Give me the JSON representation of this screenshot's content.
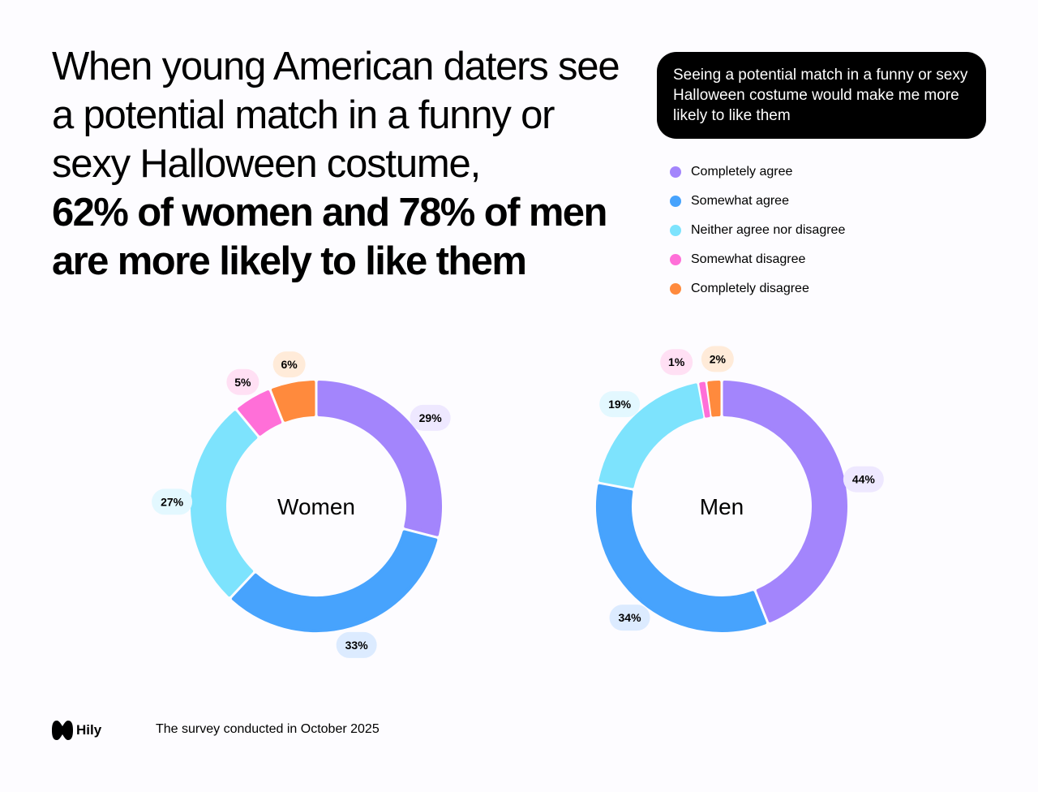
{
  "headline": {
    "regular": "When young American daters see a potential match in a funny or sexy Halloween costume,",
    "bold": "62% of women and 78% of men are more likely to like them"
  },
  "question": "Seeing a potential match in a funny or sexy Halloween costume would make me more likely to like them",
  "legend": [
    {
      "label": "Completely agree",
      "color": "#A385FC"
    },
    {
      "label": "Somewhat agree",
      "color": "#47A3FD"
    },
    {
      "label": "Neither agree nor disagree",
      "color": "#7DE3FD"
    },
    {
      "label": "Somewhat disagree",
      "color": "#FF6FD8"
    },
    {
      "label": "Completely disagree",
      "color": "#FF8A3D"
    }
  ],
  "chart_data": [
    {
      "type": "pie",
      "variant": "donut",
      "title": "Women",
      "categories": [
        "Completely agree",
        "Somewhat agree",
        "Neither agree nor disagree",
        "Somewhat disagree",
        "Completely disagree"
      ],
      "values": [
        29,
        33,
        27,
        5,
        6
      ],
      "labels": [
        "29%",
        "33%",
        "27%",
        "5%",
        "6%"
      ],
      "colors": [
        "#A385FC",
        "#47A3FD",
        "#7DE3FD",
        "#FF6FD8",
        "#FF8A3D"
      ],
      "label_backgrounds": [
        "#EEE8FF",
        "#DCEBFF",
        "#E3F8FF",
        "#FFE0F4",
        "#FFEBD9"
      ]
    },
    {
      "type": "pie",
      "variant": "donut",
      "title": "Men",
      "categories": [
        "Completely agree",
        "Somewhat agree",
        "Neither agree nor disagree",
        "Somewhat disagree",
        "Completely disagree"
      ],
      "values": [
        44,
        34,
        19,
        1,
        2
      ],
      "labels": [
        "44%",
        "34%",
        "19%",
        "1%",
        "2%"
      ],
      "colors": [
        "#A385FC",
        "#47A3FD",
        "#7DE3FD",
        "#FF6FD8",
        "#FF8A3D"
      ],
      "label_backgrounds": [
        "#EEE8FF",
        "#DCEBFF",
        "#E3F8FF",
        "#FFE0F4",
        "#FFEBD9"
      ]
    }
  ],
  "footer": {
    "brand": "Hily",
    "note": "The survey conducted in October 2025"
  }
}
